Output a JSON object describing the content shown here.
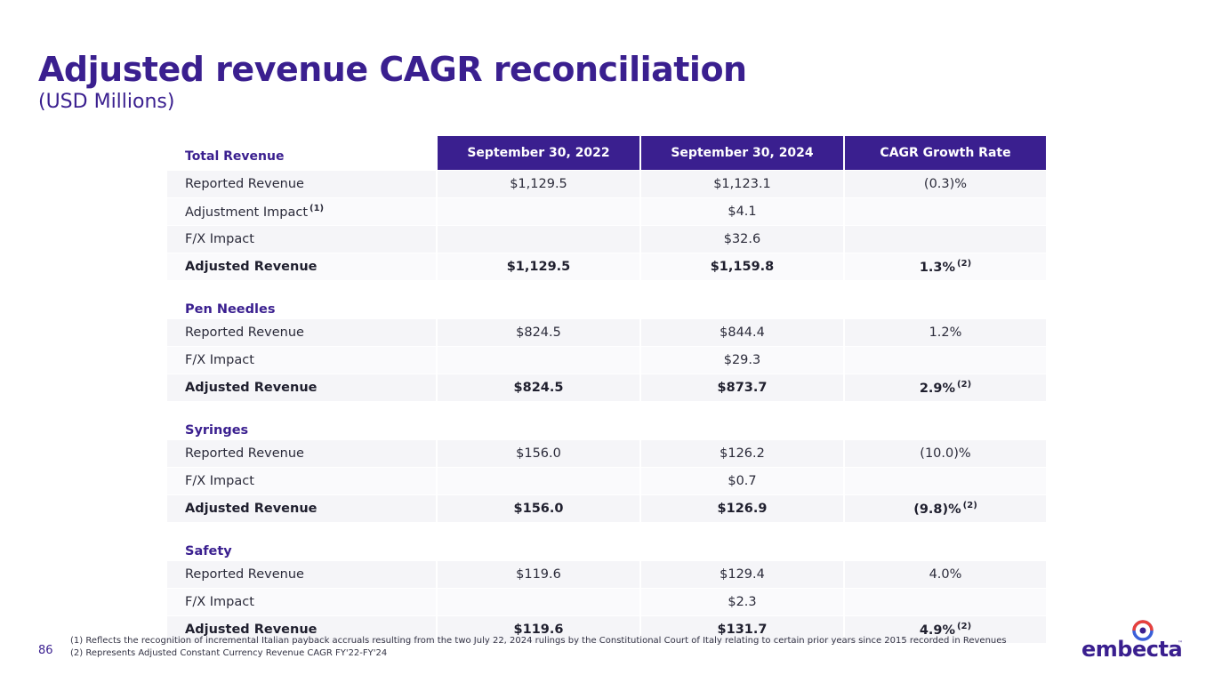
{
  "title": "Adjusted revenue CAGR reconciliation",
  "subtitle": "(USD Millions)",
  "table": {
    "headers": [
      "Total Revenue",
      "September 30, 2022",
      "September 30, 2024",
      "CAGR Growth Rate"
    ],
    "sections": [
      {
        "name": "Total Revenue",
        "rows": [
          {
            "label": "Reported Revenue",
            "fy22": "$1,129.5",
            "fy24": "$1,123.1",
            "cagr": "(0.3)%"
          },
          {
            "label": "Adjustment Impact",
            "label_note": "(1)",
            "fy22": "",
            "fy24": "$4.1",
            "cagr": ""
          },
          {
            "label": "F/X Impact",
            "fy22": "",
            "fy24": "$32.6",
            "cagr": ""
          },
          {
            "label": "Adjusted Revenue",
            "fy22": "$1,129.5",
            "fy24": "$1,159.8",
            "cagr": "1.3%",
            "cagr_note": "(2)"
          }
        ]
      },
      {
        "name": "Pen Needles",
        "rows": [
          {
            "label": "Reported Revenue",
            "fy22": "$824.5",
            "fy24": "$844.4",
            "cagr": "1.2%"
          },
          {
            "label": "F/X Impact",
            "fy22": "",
            "fy24": "$29.3",
            "cagr": ""
          },
          {
            "label": "Adjusted Revenue",
            "fy22": "$824.5",
            "fy24": "$873.7",
            "cagr": "2.9%",
            "cagr_note": "(2)"
          }
        ]
      },
      {
        "name": "Syringes",
        "rows": [
          {
            "label": "Reported Revenue",
            "fy22": "$156.0",
            "fy24": "$126.2",
            "cagr": "(10.0)%"
          },
          {
            "label": "F/X Impact",
            "fy22": "",
            "fy24": "$0.7",
            "cagr": ""
          },
          {
            "label": "Adjusted Revenue",
            "fy22": "$156.0",
            "fy24": "$126.9",
            "cagr": "(9.8)%",
            "cagr_note": "(2)"
          }
        ]
      },
      {
        "name": "Safety",
        "rows": [
          {
            "label": "Reported Revenue",
            "fy22": "$119.6",
            "fy24": "$129.4",
            "cagr": "4.0%"
          },
          {
            "label": "F/X Impact",
            "fy22": "",
            "fy24": "$2.3",
            "cagr": ""
          },
          {
            "label": "Adjusted Revenue",
            "fy22": "$119.6",
            "fy24": "$131.7",
            "cagr": "4.9%",
            "cagr_note": "(2)"
          }
        ]
      }
    ]
  },
  "footnotes": [
    "(1) Reflects the recognition of incremental Italian payback accruals resulting from the two July 22, 2024 rulings by the Constitutional Court of Italy relating to certain prior years since 2015 recorded in Revenues",
    "(2) Represents Adjusted Constant Currency Revenue CAGR FY'22-FY'24"
  ],
  "page_number": "86",
  "logo": {
    "text": "embecta",
    "tm": "™",
    "icon": "embecta-logo-mark-icon"
  },
  "colors": {
    "brand": "#3a1f8f",
    "accent_red": "#e8403c",
    "accent_blue": "#3a5fd9",
    "row_bg": "#f5f5f8"
  }
}
